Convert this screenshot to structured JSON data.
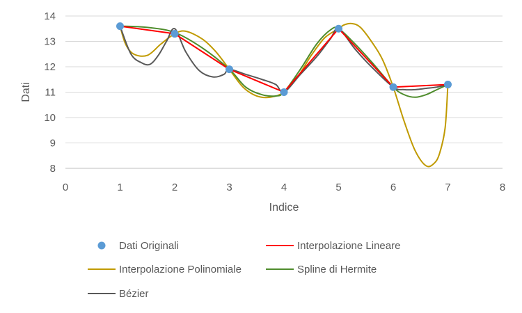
{
  "chart_data": {
    "type": "line",
    "xlabel": "Indice",
    "ylabel": "Dati",
    "xlim": [
      0,
      8
    ],
    "ylim": [
      8,
      14
    ],
    "x_ticks": [
      0,
      1,
      2,
      3,
      4,
      5,
      6,
      7,
      8
    ],
    "y_ticks": [
      8,
      9,
      10,
      11,
      12,
      13,
      14
    ],
    "grid": "horizontal",
    "legend_position": "bottom",
    "series": [
      {
        "name": "Dati Originali",
        "style": "markers",
        "color": "#5B9BD5",
        "x": [
          1,
          2,
          3,
          4,
          5,
          6,
          7
        ],
        "y": [
          13.6,
          13.3,
          11.9,
          11.0,
          13.5,
          11.2,
          11.3
        ]
      },
      {
        "name": "Interpolazione Lineare",
        "style": "line",
        "color": "#FF0000",
        "x": [
          1,
          2,
          3,
          4,
          5,
          6,
          7
        ],
        "y": [
          13.6,
          13.3,
          11.9,
          11.0,
          13.5,
          11.2,
          11.3
        ]
      },
      {
        "name": "Interpolazione Polinomiale",
        "style": "line",
        "color": "#C09A00",
        "x": [
          1,
          1.1,
          1.25,
          1.5,
          1.75,
          2,
          2.2,
          2.5,
          2.75,
          3,
          3.25,
          3.5,
          3.75,
          4,
          4.25,
          4.5,
          4.75,
          5,
          5.1,
          5.25,
          5.4,
          5.6,
          5.8,
          6,
          6.2,
          6.4,
          6.6,
          6.75,
          6.85,
          6.95,
          7
        ],
        "y": [
          13.6,
          12.9,
          12.5,
          12.45,
          12.9,
          13.3,
          13.4,
          13.1,
          12.6,
          11.9,
          11.2,
          10.85,
          10.8,
          11.0,
          11.6,
          12.45,
          13.15,
          13.5,
          13.65,
          13.7,
          13.55,
          13.0,
          12.3,
          11.2,
          9.85,
          8.7,
          8.1,
          8.2,
          8.6,
          9.6,
          11.3
        ]
      },
      {
        "name": "Spline di Hermite",
        "style": "line",
        "color": "#4E8C2C",
        "x": [
          1,
          1.5,
          2,
          2.5,
          3,
          3.3,
          3.6,
          3.85,
          4,
          4.3,
          4.6,
          4.85,
          5,
          5.3,
          5.6,
          6,
          6.2,
          6.4,
          6.6,
          6.8,
          7
        ],
        "y": [
          13.6,
          13.55,
          13.35,
          12.75,
          11.9,
          11.2,
          10.9,
          10.85,
          11.0,
          11.9,
          12.9,
          13.45,
          13.5,
          12.9,
          12.2,
          11.2,
          10.9,
          10.8,
          10.9,
          11.1,
          11.3
        ]
      },
      {
        "name": "Bézier",
        "style": "line",
        "color": "#595959",
        "x": [
          1,
          1.2,
          1.4,
          1.55,
          1.7,
          1.85,
          2,
          2.2,
          2.45,
          2.7,
          2.9,
          3,
          3.3,
          3.6,
          3.85,
          4,
          4.3,
          4.6,
          4.85,
          5,
          5.3,
          5.6,
          6,
          6.2,
          6.4,
          6.6,
          6.8,
          7
        ],
        "y": [
          13.6,
          12.5,
          12.15,
          12.1,
          12.45,
          13.0,
          13.5,
          12.6,
          11.85,
          11.6,
          11.7,
          11.9,
          11.7,
          11.5,
          11.3,
          11.0,
          11.7,
          12.4,
          13.1,
          13.5,
          12.7,
          12.0,
          11.2,
          11.1,
          11.1,
          11.15,
          11.2,
          11.3
        ]
      }
    ]
  }
}
